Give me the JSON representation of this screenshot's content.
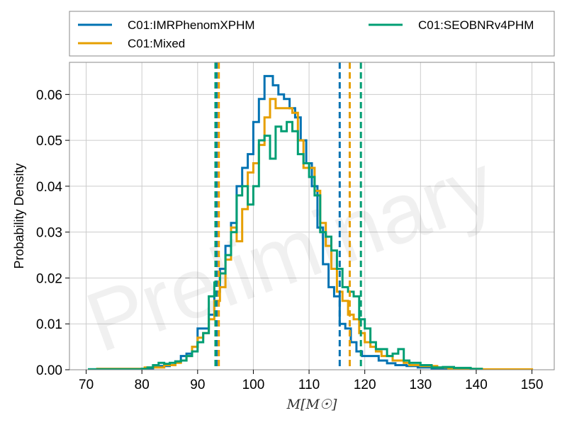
{
  "chart_data": {
    "type": "line",
    "subtype": "step-histogram",
    "xlabel": "M[M☉]",
    "ylabel": "Probability Density",
    "xlim": [
      67,
      154
    ],
    "ylim": [
      0,
      0.067
    ],
    "xticks": [
      70,
      80,
      90,
      100,
      110,
      120,
      130,
      140,
      150
    ],
    "yticks": [
      0.0,
      0.01,
      0.02,
      0.03,
      0.04,
      0.05,
      0.06
    ],
    "ytick_labels": [
      "0.00",
      "0.01",
      "0.02",
      "0.03",
      "0.04",
      "0.05",
      "0.06"
    ],
    "grid": true,
    "legend_position": "above plot, 2 columns",
    "watermark": "Preliminary",
    "series": [
      {
        "name": "C01:IMRPhenomXPHM",
        "color": "#0072b2",
        "bins": [
          [
            70.5,
            0.0001
          ],
          [
            72.0,
            0.0002
          ],
          [
            82.0,
            0.0008
          ],
          [
            85.0,
            0.001
          ],
          [
            86.0,
            0.0018
          ],
          [
            87.0,
            0.003
          ],
          [
            88.0,
            0.0035
          ],
          [
            89.0,
            0.005
          ],
          [
            90.0,
            0.009
          ],
          [
            91.0,
            0.009
          ],
          [
            92.0,
            0.012
          ],
          [
            93.0,
            0.017
          ],
          [
            94.0,
            0.022
          ],
          [
            95.0,
            0.027
          ],
          [
            96.0,
            0.032
          ],
          [
            97.0,
            0.04
          ],
          [
            98.0,
            0.044
          ],
          [
            99.0,
            0.047
          ],
          [
            100.0,
            0.054
          ],
          [
            101.0,
            0.059
          ],
          [
            102.0,
            0.064
          ],
          [
            103.5,
            0.062
          ],
          [
            104.5,
            0.06
          ],
          [
            105.5,
            0.059
          ],
          [
            106.5,
            0.057
          ],
          [
            107.5,
            0.055
          ],
          [
            108.5,
            0.05
          ],
          [
            109.5,
            0.045
          ],
          [
            110.5,
            0.04
          ],
          [
            111.5,
            0.031
          ],
          [
            112.5,
            0.023
          ],
          [
            113.5,
            0.018
          ],
          [
            114.5,
            0.016
          ],
          [
            115.5,
            0.01
          ],
          [
            116.5,
            0.009
          ],
          [
            117.5,
            0.006
          ],
          [
            118.5,
            0.004
          ],
          [
            119.5,
            0.003
          ],
          [
            121.5,
            0.003
          ],
          [
            122.5,
            0.002
          ],
          [
            124.0,
            0.0014
          ],
          [
            125.5,
            0.001
          ],
          [
            127.5,
            0.0008
          ],
          [
            129.5,
            0.0005
          ],
          [
            132.0,
            0.0003
          ],
          [
            135.0,
            0.0002
          ],
          [
            138.0,
            0.0001
          ]
        ],
        "bins_end": 140.0,
        "ci_lines": [
          93.4,
          115.5
        ]
      },
      {
        "name": "C01:Mixed",
        "color": "#e69f00",
        "bins": [
          [
            72.0,
            0.0002
          ],
          [
            80.5,
            0.0005
          ],
          [
            84.0,
            0.001
          ],
          [
            86.0,
            0.0015
          ],
          [
            87.0,
            0.002
          ],
          [
            88.0,
            0.003
          ],
          [
            89.0,
            0.005
          ],
          [
            90.0,
            0.007
          ],
          [
            91.0,
            0.008
          ],
          [
            92.0,
            0.011
          ],
          [
            93.0,
            0.015
          ],
          [
            94.0,
            0.018
          ],
          [
            95.0,
            0.024
          ],
          [
            96.0,
            0.031
          ],
          [
            97.0,
            0.028
          ],
          [
            98.0,
            0.035
          ],
          [
            99.0,
            0.043
          ],
          [
            100.0,
            0.045
          ],
          [
            101.0,
            0.049
          ],
          [
            102.0,
            0.055
          ],
          [
            103.0,
            0.059
          ],
          [
            104.0,
            0.057
          ],
          [
            105.0,
            0.057
          ],
          [
            107.0,
            0.056
          ],
          [
            108.0,
            0.05
          ],
          [
            109.0,
            0.044
          ],
          [
            110.0,
            0.044
          ],
          [
            111.0,
            0.039
          ],
          [
            112.0,
            0.032
          ],
          [
            113.0,
            0.027
          ],
          [
            114.0,
            0.022
          ],
          [
            115.0,
            0.017
          ],
          [
            116.0,
            0.015
          ],
          [
            117.0,
            0.012
          ],
          [
            118.0,
            0.011
          ],
          [
            119.0,
            0.008
          ],
          [
            120.0,
            0.006
          ],
          [
            121.0,
            0.005
          ],
          [
            122.0,
            0.004
          ],
          [
            123.0,
            0.003
          ],
          [
            124.0,
            0.003
          ],
          [
            125.0,
            0.002
          ],
          [
            126.0,
            0.002
          ],
          [
            127.0,
            0.0015
          ],
          [
            128.0,
            0.001
          ],
          [
            130.0,
            0.0008
          ],
          [
            133.0,
            0.0005
          ],
          [
            135.0,
            0.0003
          ],
          [
            138.0,
            0.0002
          ],
          [
            141.0,
            0.0001
          ],
          [
            148.0,
            0.0001
          ]
        ],
        "bins_end": 150.0,
        "ci_lines": [
          93.8,
          117.3
        ]
      },
      {
        "name": "C01:SEOBNRv4PHM",
        "color": "#009e73",
        "bins": [
          [
            70.5,
            0.0001
          ],
          [
            80.0,
            0.0002
          ],
          [
            81.0,
            0.0005
          ],
          [
            82.0,
            0.001
          ],
          [
            83.0,
            0.0015
          ],
          [
            84.0,
            0.0013
          ],
          [
            85.0,
            0.0015
          ],
          [
            86.0,
            0.0018
          ],
          [
            87.0,
            0.002
          ],
          [
            88.0,
            0.003
          ],
          [
            89.0,
            0.004
          ],
          [
            90.0,
            0.006
          ],
          [
            91.0,
            0.008
          ],
          [
            92.0,
            0.016
          ],
          [
            93.0,
            0.019
          ],
          [
            94.0,
            0.021
          ],
          [
            95.0,
            0.025
          ],
          [
            96.0,
            0.03
          ],
          [
            97.0,
            0.038
          ],
          [
            98.0,
            0.04
          ],
          [
            99.0,
            0.036
          ],
          [
            100.0,
            0.04
          ],
          [
            101.0,
            0.05
          ],
          [
            102.0,
            0.051
          ],
          [
            103.0,
            0.046
          ],
          [
            104.0,
            0.053
          ],
          [
            105.0,
            0.052
          ],
          [
            106.0,
            0.054
          ],
          [
            107.0,
            0.052
          ],
          [
            108.0,
            0.047
          ],
          [
            109.0,
            0.045
          ],
          [
            110.0,
            0.042
          ],
          [
            111.0,
            0.038
          ],
          [
            112.0,
            0.03
          ],
          [
            113.0,
            0.029
          ],
          [
            114.0,
            0.026
          ],
          [
            115.0,
            0.022
          ],
          [
            116.0,
            0.018
          ],
          [
            117.0,
            0.017
          ],
          [
            118.0,
            0.016
          ],
          [
            119.0,
            0.011
          ],
          [
            120.0,
            0.009
          ],
          [
            121.0,
            0.006
          ],
          [
            122.0,
            0.0045
          ],
          [
            123.0,
            0.0045
          ],
          [
            124.0,
            0.003
          ],
          [
            125.0,
            0.0035
          ],
          [
            126.0,
            0.0045
          ],
          [
            127.0,
            0.002
          ],
          [
            128.0,
            0.0015
          ],
          [
            130.0,
            0.001
          ],
          [
            132.0,
            0.0005
          ],
          [
            134.0,
            0.0006
          ],
          [
            136.0,
            0.0004
          ],
          [
            139.0,
            0.0002
          ]
        ],
        "bins_end": 141.0,
        "ci_lines": [
          93.2,
          119.3
        ]
      }
    ]
  }
}
